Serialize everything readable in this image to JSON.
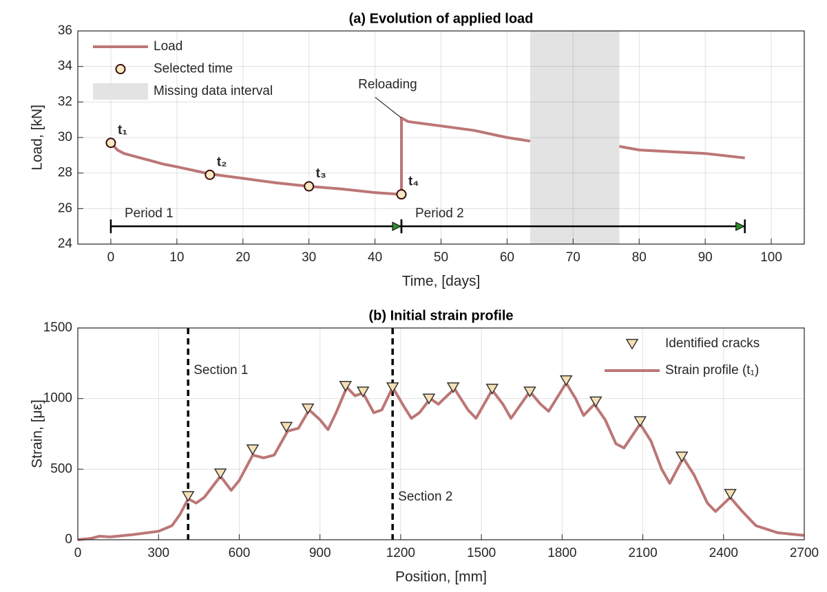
{
  "chart_data": [
    {
      "type": "line",
      "title": "(a) Evolution of applied load",
      "xlabel": "Time, [days]",
      "ylabel": "Load, [kN]",
      "xlim": [
        -5,
        105
      ],
      "xticks": [
        0,
        10,
        20,
        30,
        40,
        50,
        60,
        70,
        80,
        90,
        100
      ],
      "ylim": [
        24,
        36
      ],
      "yticks": [
        24,
        26,
        28,
        30,
        32,
        34,
        36
      ],
      "grid": true,
      "legend": "upper left",
      "series": [
        {
          "name": "Load",
          "color": "#bc7676",
          "x": [
            0,
            1,
            2,
            4,
            6,
            8,
            10,
            15,
            20,
            25,
            30,
            35,
            40,
            44,
            44,
            45,
            50,
            55,
            60,
            63.5,
            70,
            77,
            80,
            85,
            90,
            96
          ],
          "values": [
            29.7,
            29.3,
            29.1,
            28.9,
            28.7,
            28.5,
            28.35,
            27.95,
            27.7,
            27.45,
            27.25,
            27.1,
            26.9,
            26.8,
            31.1,
            30.9,
            30.65,
            30.4,
            30.0,
            29.8,
            null,
            29.5,
            29.3,
            29.2,
            29.1,
            28.85
          ]
        },
        {
          "name": "Selected time",
          "type": "scatter",
          "color": "#f8eac4",
          "edgecolor": "#3a0a0a",
          "x": [
            0,
            15,
            30,
            44
          ],
          "values": [
            29.7,
            27.9,
            27.25,
            26.8
          ],
          "point_labels": [
            "t₁",
            "t₂",
            "t₃",
            "t₄"
          ],
          "label_color": "#6b1010"
        }
      ],
      "shaded_intervals": [
        {
          "name": "Missing data interval",
          "color": "#e3e3e3",
          "x": [
            63.5,
            77
          ]
        }
      ],
      "annotations": [
        {
          "text": "Reloading",
          "x": 44,
          "y": 31.1
        }
      ],
      "periods": [
        {
          "label": "Period 1",
          "x": [
            0,
            44
          ],
          "y": 25
        },
        {
          "label": "Period 2",
          "x": [
            44,
            96
          ],
          "y": 25
        }
      ]
    },
    {
      "type": "line",
      "title": "(b) Initial strain profile",
      "xlabel": "Position, [mm]",
      "ylabel": "Strain, [με]",
      "xlim": [
        0,
        2700
      ],
      "xticks": [
        0,
        300,
        600,
        900,
        1200,
        1500,
        1800,
        2100,
        2400,
        2700
      ],
      "ylim": [
        0,
        1500
      ],
      "yticks": [
        0,
        500,
        1000,
        1500
      ],
      "grid": true,
      "legend": "upper right",
      "series": [
        {
          "name": "Identified cracks",
          "type": "scatter",
          "marker": "v",
          "color": "#f7e0b5",
          "edgecolor": "#333333",
          "x": [
            410,
            530,
            650,
            775,
            855,
            995,
            1060,
            1170,
            1305,
            1395,
            1540,
            1680,
            1815,
            1925,
            2090,
            2245,
            2425
          ],
          "values": [
            310,
            470,
            640,
            800,
            930,
            1090,
            1050,
            1080,
            1000,
            1080,
            1070,
            1050,
            1130,
            980,
            840,
            590,
            325
          ]
        },
        {
          "name": "Strain profile (t₁)",
          "color": "#bc7676",
          "x": [
            0,
            50,
            80,
            120,
            200,
            300,
            350,
            380,
            410,
            440,
            470,
            530,
            570,
            600,
            650,
            690,
            730,
            780,
            820,
            860,
            900,
            930,
            960,
            1000,
            1030,
            1060,
            1100,
            1130,
            1170,
            1210,
            1240,
            1270,
            1310,
            1340,
            1400,
            1450,
            1480,
            1540,
            1580,
            1610,
            1680,
            1720,
            1750,
            1815,
            1850,
            1880,
            1920,
            1960,
            2000,
            2030,
            2090,
            2130,
            2170,
            2200,
            2250,
            2290,
            2340,
            2370,
            2425,
            2470,
            2520,
            2600,
            2700
          ],
          "values": [
            0,
            10,
            25,
            20,
            35,
            60,
            100,
            180,
            290,
            260,
            300,
            450,
            350,
            420,
            600,
            580,
            600,
            770,
            790,
            920,
            850,
            780,
            900,
            1080,
            1020,
            1040,
            900,
            920,
            1080,
            950,
            860,
            900,
            1000,
            960,
            1070,
            920,
            860,
            1060,
            960,
            860,
            1050,
            960,
            910,
            1110,
            1000,
            880,
            960,
            850,
            680,
            650,
            820,
            700,
            500,
            400,
            580,
            460,
            260,
            200,
            300,
            200,
            100,
            50,
            30
          ]
        }
      ],
      "vlines": [
        {
          "label": "Section 1",
          "x": 410
        },
        {
          "label": "Section 2",
          "x": 1170
        }
      ]
    }
  ]
}
